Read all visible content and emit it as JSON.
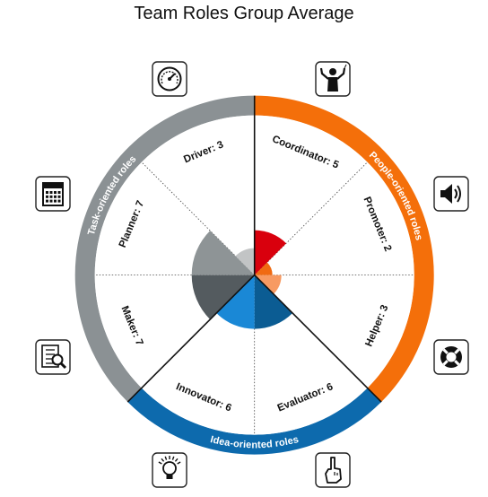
{
  "chart_data": {
    "type": "polar-area",
    "title": "Team Roles Group Average",
    "scale_max": 10,
    "segments": [
      {
        "label": "Coordinator: 5",
        "role": "Coordinator",
        "value": 5,
        "group": "People-oriented roles",
        "color": "#d9000d",
        "icon": "conductor-icon"
      },
      {
        "label": "Promoter: 2",
        "role": "Promoter",
        "value": 2,
        "group": "People-oriented roles",
        "color": "#f06a12",
        "icon": "megaphone-speaker-icon"
      },
      {
        "label": "Helper: 3",
        "role": "Helper",
        "value": 3,
        "group": "People-oriented roles",
        "color": "#f79a62",
        "icon": "lifebuoy-icon"
      },
      {
        "label": "Evaluator: 6",
        "role": "Evaluator",
        "value": 6,
        "group": "Idea-oriented roles",
        "color": "#0b5c93",
        "icon": "pointing-hand-icon"
      },
      {
        "label": "Innovator: 6",
        "role": "Innovator",
        "value": 6,
        "group": "Idea-oriented roles",
        "color": "#1a88d6",
        "icon": "lightbulb-icon"
      },
      {
        "label": "Maker: 7",
        "role": "Maker",
        "value": 7,
        "group": "Task-oriented roles",
        "color": "#545b5f",
        "icon": "checklist-icon"
      },
      {
        "label": "Planner: 7",
        "role": "Planner",
        "value": 7,
        "group": "Task-oriented roles",
        "color": "#8e9496",
        "icon": "calendar-icon"
      },
      {
        "label": "Driver: 3",
        "role": "Driver",
        "value": 3,
        "group": "Task-oriented roles",
        "color": "#c2c4c5",
        "icon": "speedometer-icon"
      }
    ],
    "groups": [
      {
        "name": "People-oriented roles",
        "color": "#f46f0a"
      },
      {
        "name": "Idea-oriented roles",
        "color": "#0d6aad"
      },
      {
        "name": "Task-oriented roles",
        "color": "#8b9194"
      }
    ]
  }
}
